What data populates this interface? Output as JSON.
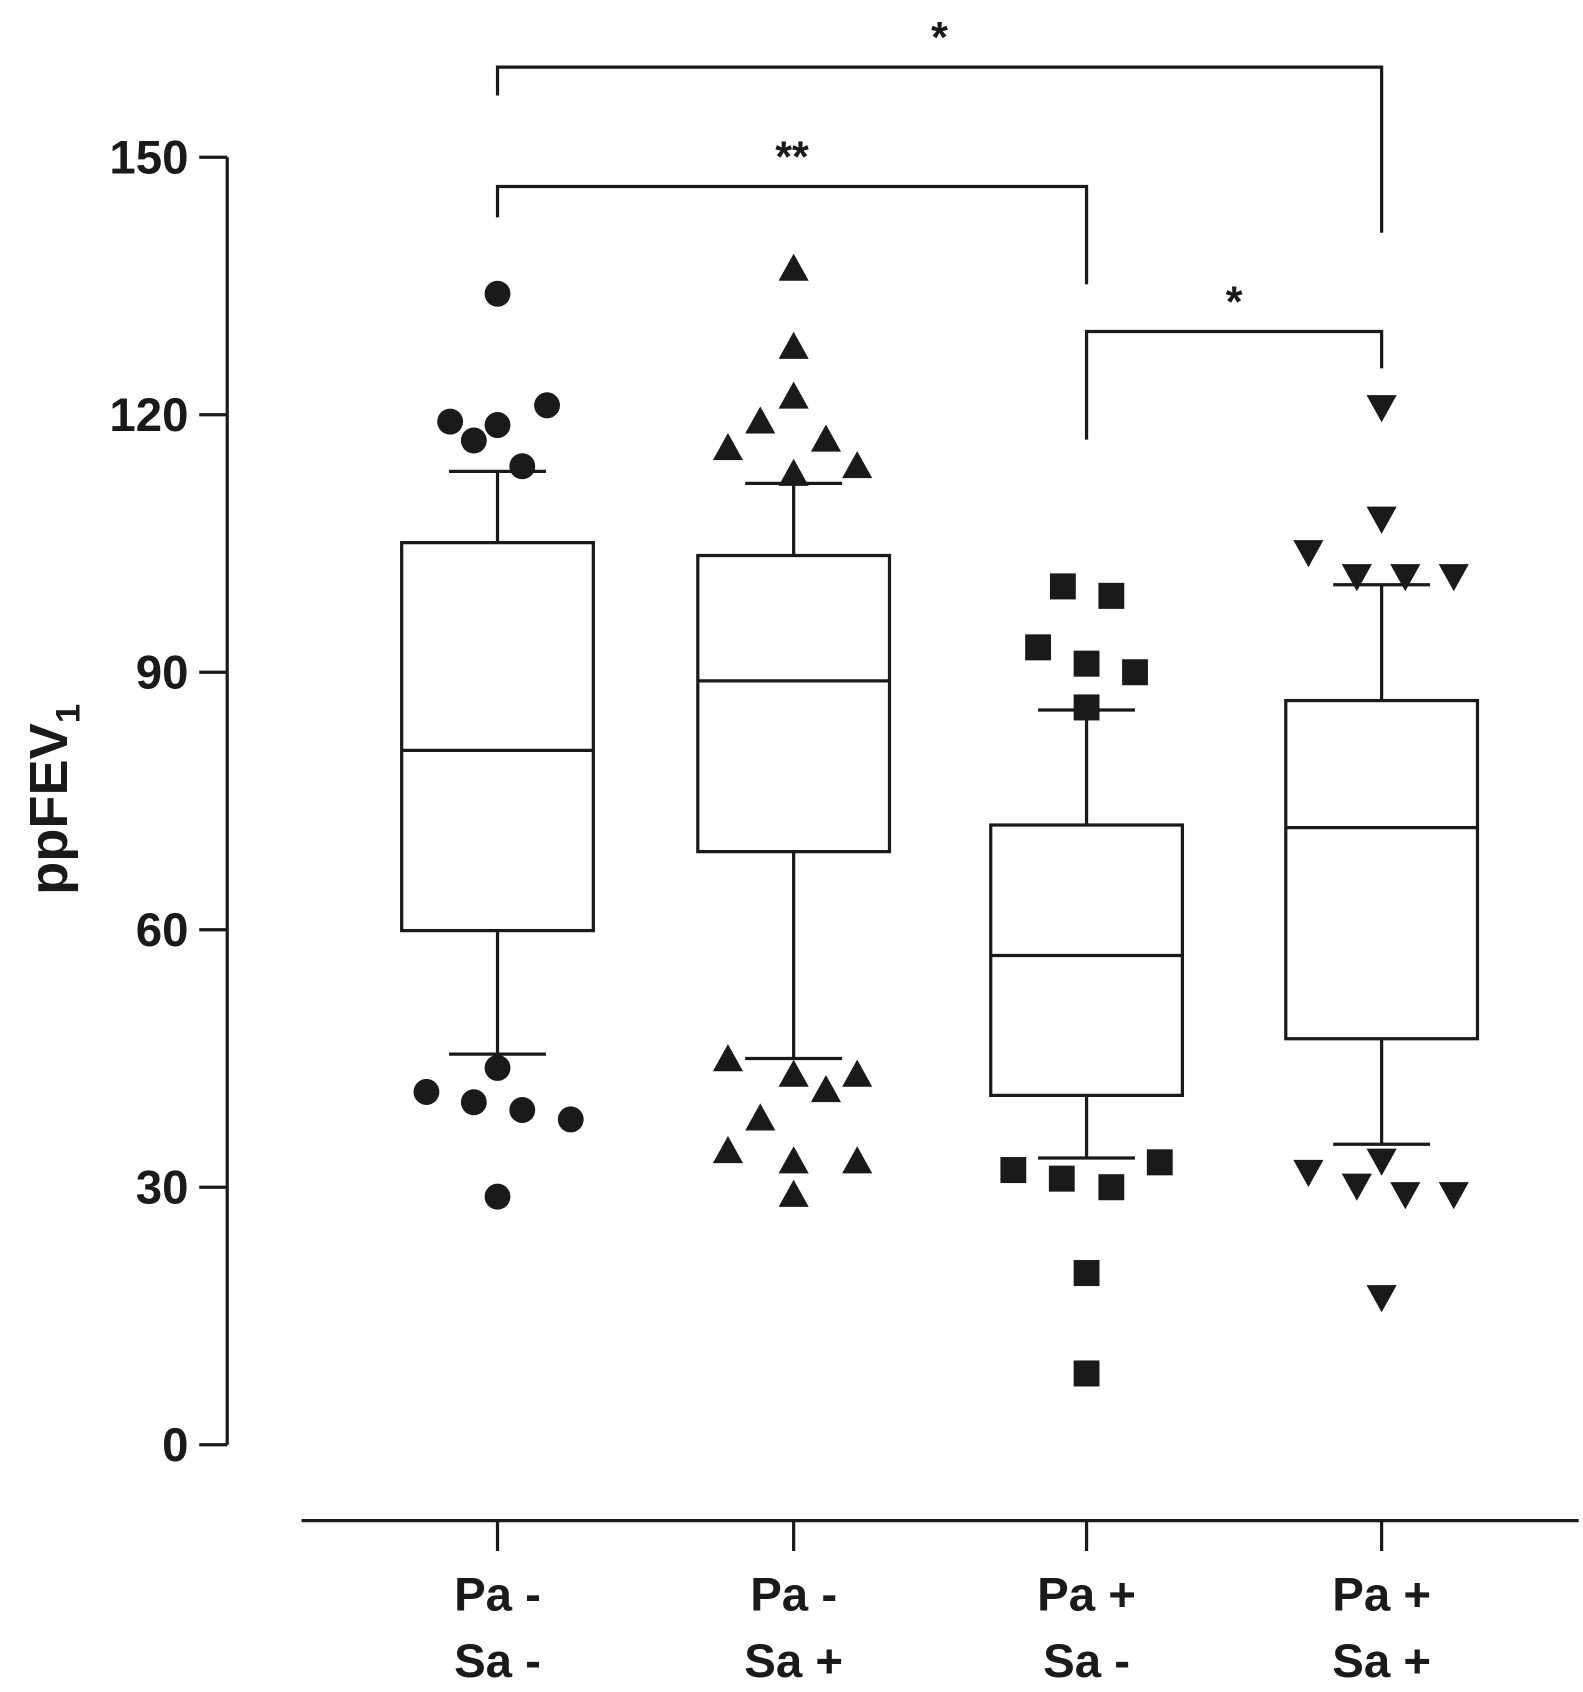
{
  "chart_data": {
    "type": "box",
    "ylabel": "ppFEV",
    "ylabel_subscript": "1",
    "categories": [
      [
        "Pa -",
        "Sa -"
      ],
      [
        "Pa -",
        "Sa +"
      ],
      [
        "Pa +",
        "Sa -"
      ],
      [
        "Pa +",
        "Sa +"
      ]
    ],
    "ylim": [
      0,
      150
    ],
    "yticks": [
      0,
      30,
      60,
      90,
      120,
      150
    ],
    "color": "#1a1a1a",
    "boxes": [
      {
        "marker": "circle",
        "whisker_low": 45.5,
        "q1": 59.9,
        "median": 80.9,
        "q3": 105.1,
        "whisker_high": 113.4,
        "outliers": [
          134.1,
          119.2,
          117.0,
          118.8,
          121.1,
          114.0,
          41.1,
          39.9,
          43.9,
          39.0,
          37.9,
          28.9
        ]
      },
      {
        "marker": "triangle-up",
        "whisker_low": 45.0,
        "q1": 69.1,
        "median": 89.0,
        "q3": 103.6,
        "whisker_high": 112.0,
        "outliers": [
          137.0,
          127.9,
          122.1,
          119.2,
          116.1,
          117.1,
          113.1,
          114.0,
          44.9,
          43.1,
          41.3,
          43.1,
          38.0,
          34.2,
          33.0,
          33.0,
          29.1
        ]
      },
      {
        "marker": "square",
        "whisker_low": 33.4,
        "q1": 40.7,
        "median": 57.0,
        "q3": 72.2,
        "whisker_high": 85.6,
        "outliers": [
          100.0,
          98.9,
          92.9,
          91.0,
          90.0,
          85.9,
          32.0,
          31.0,
          30.0,
          32.9,
          20.0,
          8.3
        ]
      },
      {
        "marker": "triangle-down",
        "whisker_low": 35.0,
        "q1": 47.3,
        "median": 71.9,
        "q3": 86.7,
        "whisker_high": 100.2,
        "outliers": [
          120.9,
          107.9,
          104.0,
          101.2,
          101.2,
          101.2,
          31.8,
          33.1,
          30.2,
          29.2,
          29.2,
          17.2
        ]
      }
    ],
    "comparisons": [
      {
        "groups": [
          0,
          3
        ],
        "label": "*",
        "y": 160.5,
        "drop": [
          157.2,
          141.2
        ]
      },
      {
        "groups": [
          0,
          2
        ],
        "label": "**",
        "y": 146.6,
        "drop": [
          143.0,
          135.2
        ]
      },
      {
        "groups": [
          2,
          3
        ],
        "label": "*",
        "y": 129.7,
        "drop": [
          117.1,
          125.4
        ]
      }
    ]
  }
}
